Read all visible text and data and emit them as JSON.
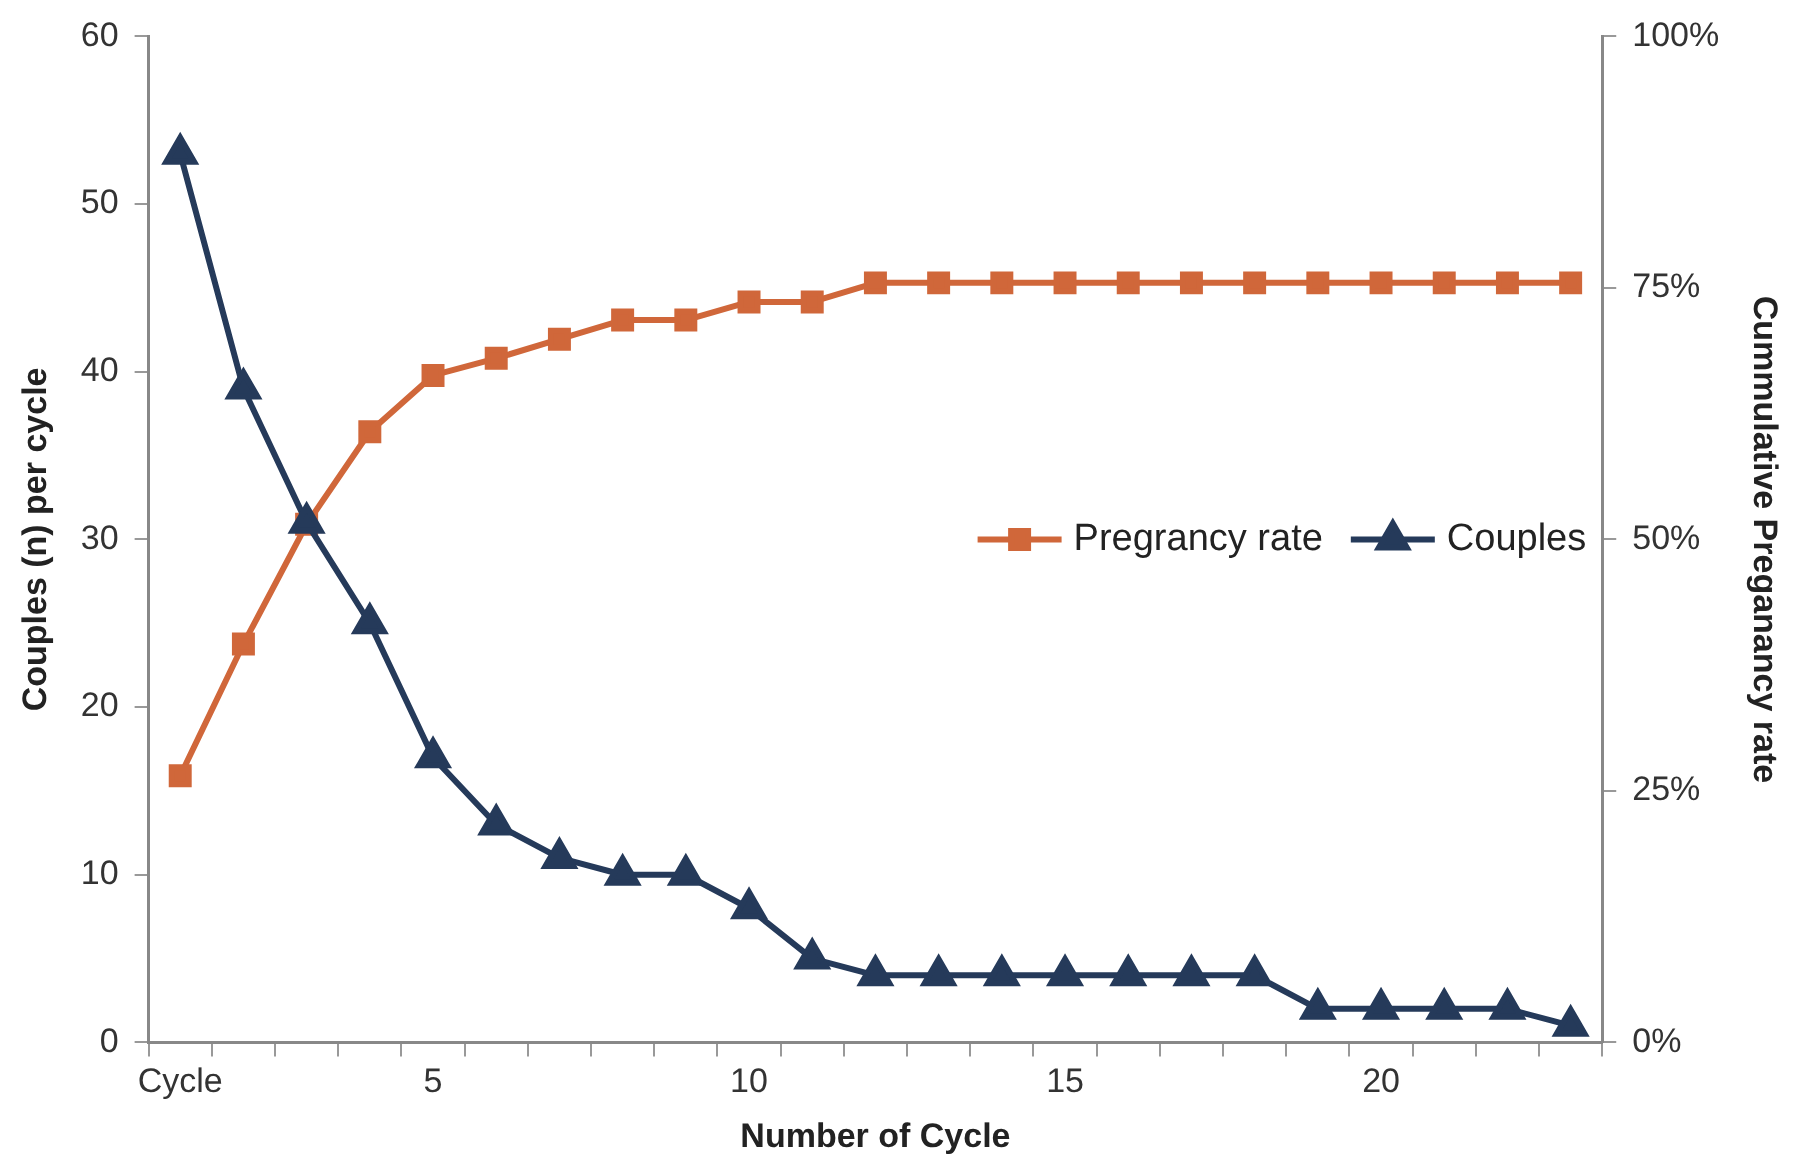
{
  "chart_data": {
    "type": "line",
    "xlabel": "Number of Cycle",
    "ylabel": "Couples (n) per cycle",
    "y2label": "Cummulative Preganancy rate",
    "categories": [
      "Cycle",
      null,
      null,
      null,
      "5",
      null,
      null,
      null,
      null,
      "10",
      null,
      null,
      null,
      null,
      "15",
      null,
      null,
      null,
      null,
      "20",
      null,
      null,
      null
    ],
    "series": [
      {
        "name": "Pregrancy rate",
        "color": "#d0673a",
        "axis": "y2",
        "marker": "square",
        "values": [
          26.5,
          39.6,
          51.5,
          60.7,
          66.3,
          68,
          69.9,
          71.8,
          71.8,
          73.6,
          73.6,
          75.5,
          75.5,
          75.5,
          75.5,
          75.5,
          75.5,
          75.5,
          75.5,
          75.5,
          75.5,
          75.5,
          75.5
        ]
      },
      {
        "name": "Couples",
        "color": "#253a5a",
        "marker": "triangle",
        "values": [
          53,
          39,
          31,
          25,
          17,
          13,
          11,
          10,
          10,
          8,
          5,
          4,
          4,
          4,
          4,
          4,
          4,
          4,
          2,
          2,
          2,
          2,
          1
        ]
      }
    ],
    "ylim": [
      0,
      60
    ],
    "yticks": [
      0,
      10,
      20,
      30,
      40,
      50,
      60
    ],
    "y2lim": [
      0,
      100
    ],
    "y2ticks": [
      {
        "value": 0,
        "label": "0%"
      },
      {
        "value": 25,
        "label": "25%"
      },
      {
        "value": 50,
        "label": "50%"
      },
      {
        "value": 75,
        "label": "75%"
      },
      {
        "value": 100,
        "label": "100%"
      }
    ],
    "grid": false,
    "legend": "right",
    "line_style": "solid"
  }
}
